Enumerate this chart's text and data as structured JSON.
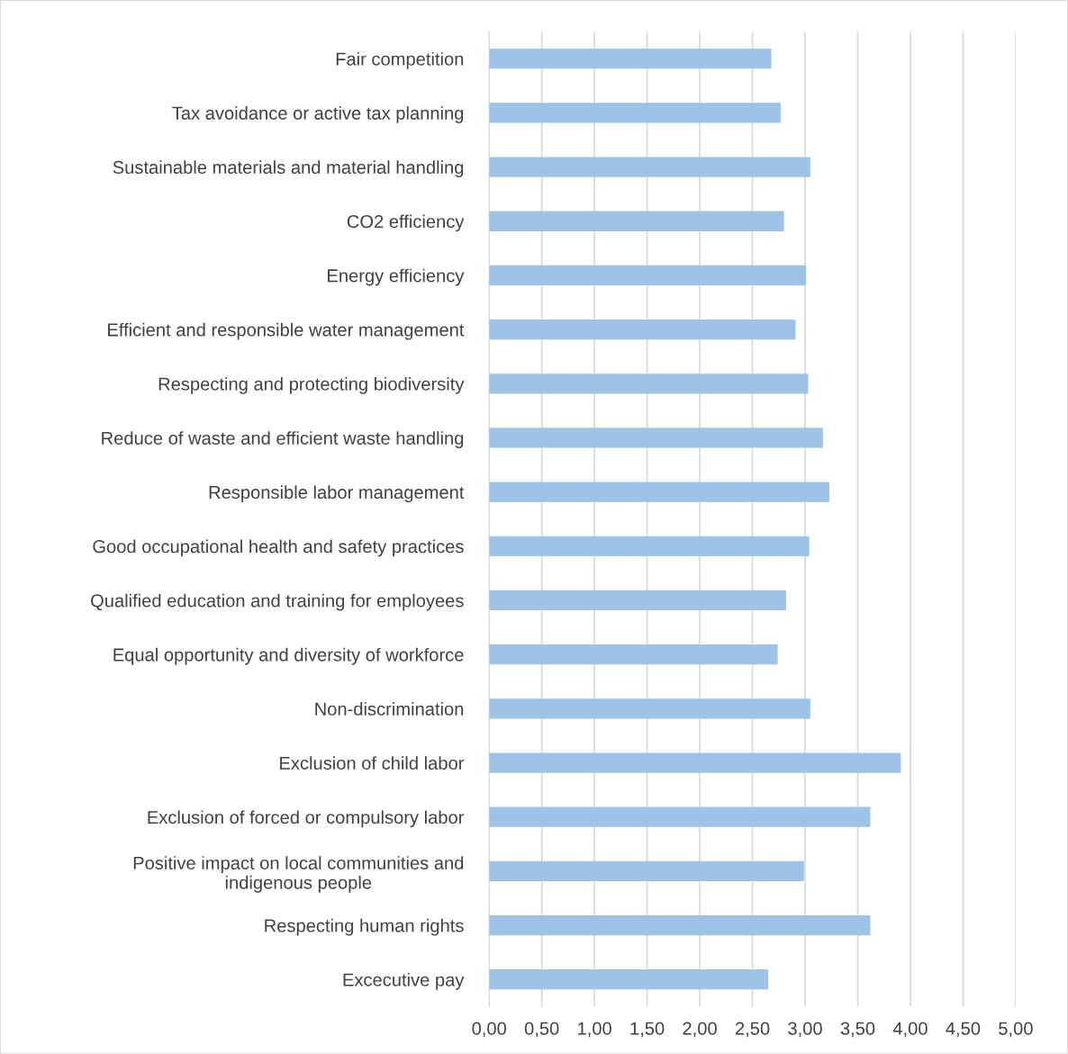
{
  "chart_data": {
    "type": "bar",
    "orientation": "horizontal",
    "categories": [
      "Fair competition",
      "Tax avoidance or active tax planning",
      "Sustainable materials and material handling",
      "CO2 efficiency",
      "Energy efficiency",
      "Efficient and responsible water management",
      "Respecting and protecting biodiversity",
      "Reduce of waste and efficient waste handling",
      "Responsible labor management",
      "Good occupational health and safety practices",
      "Qualified education and training for employees",
      "Equal opportunity and diversity of workforce",
      "Non-discrimination",
      "Exclusion of child labor",
      "Exclusion of forced or compulsory labor",
      "Positive impact on local communities and\nindigenous people",
      "Respecting human rights",
      "Excecutive pay"
    ],
    "values": [
      2.68,
      2.77,
      3.05,
      2.8,
      3.01,
      2.91,
      3.03,
      3.17,
      3.23,
      3.04,
      2.82,
      2.74,
      3.05,
      3.91,
      3.62,
      2.99,
      3.62,
      2.65
    ],
    "color": "#9dc3e6",
    "xlim": [
      0,
      5
    ],
    "xticks": [
      {
        "value": 0,
        "label": "0,00"
      },
      {
        "value": 0.5,
        "label": "0,50"
      },
      {
        "value": 1,
        "label": "1,00"
      },
      {
        "value": 1.5,
        "label": "1,50"
      },
      {
        "value": 2,
        "label": "2,00"
      },
      {
        "value": 2.5,
        "label": "2,50"
      },
      {
        "value": 3,
        "label": "3,00"
      },
      {
        "value": 3.5,
        "label": "3,50"
      },
      {
        "value": 4,
        "label": "4,00"
      },
      {
        "value": 4.5,
        "label": "4,50"
      },
      {
        "value": 5,
        "label": "5,00"
      }
    ],
    "grid": "x",
    "legend": false
  }
}
